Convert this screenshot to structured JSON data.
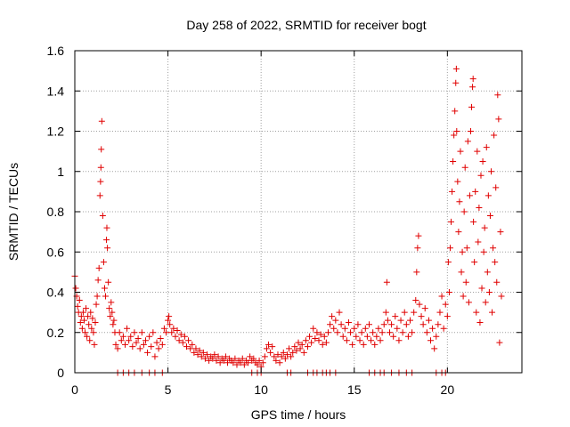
{
  "chart_data": {
    "type": "scatter",
    "title": "Day 258 of 2022, SRMTID for receiver bogt",
    "xlabel": "GPS time / hours",
    "ylabel": "SRMTID / TECUs",
    "xlim": [
      0,
      24
    ],
    "ylim": [
      0,
      1.6
    ],
    "xticks": [
      0,
      5,
      10,
      15,
      20
    ],
    "xtick_labels": [
      "0",
      "5",
      "10",
      "15",
      "20"
    ],
    "yticks": [
      0,
      0.2,
      0.4,
      0.6,
      0.8,
      1.0,
      1.2,
      1.4,
      1.6
    ],
    "ytick_labels": [
      "0",
      "0.2",
      "0.4",
      "0.6",
      "0.8",
      "1",
      "1.2",
      "1.4",
      "1.6"
    ],
    "grid": true,
    "marker": "+",
    "color": "#e00000",
    "series": [
      {
        "name": "SRMTID",
        "points": [
          [
            0.0,
            0.48
          ],
          [
            0.05,
            0.42
          ],
          [
            0.1,
            0.38
          ],
          [
            0.15,
            0.33
          ],
          [
            0.2,
            0.3
          ],
          [
            0.25,
            0.36
          ],
          [
            0.3,
            0.25
          ],
          [
            0.35,
            0.28
          ],
          [
            0.4,
            0.22
          ],
          [
            0.45,
            0.3
          ],
          [
            0.5,
            0.26
          ],
          [
            0.55,
            0.2
          ],
          [
            0.6,
            0.32
          ],
          [
            0.65,
            0.18
          ],
          [
            0.7,
            0.28
          ],
          [
            0.75,
            0.24
          ],
          [
            0.8,
            0.16
          ],
          [
            0.85,
            0.3
          ],
          [
            0.9,
            0.22
          ],
          [
            0.95,
            0.27
          ],
          [
            1.0,
            0.2
          ],
          [
            1.05,
            0.14
          ],
          [
            1.1,
            0.25
          ],
          [
            1.15,
            0.34
          ],
          [
            1.2,
            0.38
          ],
          [
            1.25,
            0.46
          ],
          [
            1.3,
            0.52
          ],
          [
            1.35,
            0.88
          ],
          [
            1.38,
            0.95
          ],
          [
            1.4,
            1.02
          ],
          [
            1.42,
            1.11
          ],
          [
            1.45,
            1.25
          ],
          [
            1.5,
            0.78
          ],
          [
            1.55,
            0.55
          ],
          [
            1.6,
            0.42
          ],
          [
            1.65,
            0.38
          ],
          [
            1.7,
            0.66
          ],
          [
            1.72,
            0.72
          ],
          [
            1.75,
            0.62
          ],
          [
            1.8,
            0.45
          ],
          [
            1.85,
            0.32
          ],
          [
            1.9,
            0.28
          ],
          [
            1.95,
            0.35
          ],
          [
            2.0,
            0.3
          ],
          [
            2.05,
            0.24
          ],
          [
            2.1,
            0.26
          ],
          [
            2.15,
            0.2
          ],
          [
            2.2,
            0.14
          ],
          [
            2.3,
            0.12
          ],
          [
            2.4,
            0.2
          ],
          [
            2.5,
            0.16
          ],
          [
            2.6,
            0.18
          ],
          [
            2.7,
            0.14
          ],
          [
            2.8,
            0.22
          ],
          [
            2.9,
            0.16
          ],
          [
            3.0,
            0.18
          ],
          [
            3.1,
            0.13
          ],
          [
            3.2,
            0.2
          ],
          [
            3.3,
            0.15
          ],
          [
            3.4,
            0.17
          ],
          [
            3.5,
            0.12
          ],
          [
            3.6,
            0.2
          ],
          [
            3.7,
            0.14
          ],
          [
            3.8,
            0.16
          ],
          [
            3.9,
            0.1
          ],
          [
            4.0,
            0.18
          ],
          [
            4.1,
            0.13
          ],
          [
            4.2,
            0.2
          ],
          [
            4.3,
            0.08
          ],
          [
            4.4,
            0.15
          ],
          [
            4.5,
            0.12
          ],
          [
            4.6,
            0.17
          ],
          [
            4.7,
            0.14
          ],
          [
            4.8,
            0.22
          ],
          [
            4.9,
            0.2
          ],
          [
            5.0,
            0.26
          ],
          [
            5.05,
            0.28
          ],
          [
            5.1,
            0.24
          ],
          [
            5.2,
            0.2
          ],
          [
            5.3,
            0.22
          ],
          [
            5.4,
            0.18
          ],
          [
            5.5,
            0.21
          ],
          [
            5.6,
            0.16
          ],
          [
            5.7,
            0.19
          ],
          [
            5.8,
            0.15
          ],
          [
            5.9,
            0.18
          ],
          [
            6.0,
            0.13
          ],
          [
            6.1,
            0.16
          ],
          [
            6.2,
            0.12
          ],
          [
            6.3,
            0.14
          ],
          [
            6.4,
            0.1
          ],
          [
            6.5,
            0.12
          ],
          [
            6.6,
            0.09
          ],
          [
            6.7,
            0.11
          ],
          [
            6.8,
            0.08
          ],
          [
            6.9,
            0.1
          ],
          [
            7.0,
            0.07
          ],
          [
            7.1,
            0.09
          ],
          [
            7.2,
            0.06
          ],
          [
            7.3,
            0.08
          ],
          [
            7.4,
            0.07
          ],
          [
            7.5,
            0.09
          ],
          [
            7.6,
            0.06
          ],
          [
            7.7,
            0.08
          ],
          [
            7.8,
            0.05
          ],
          [
            7.9,
            0.07
          ],
          [
            8.0,
            0.06
          ],
          [
            8.1,
            0.08
          ],
          [
            8.2,
            0.05
          ],
          [
            8.3,
            0.07
          ],
          [
            8.4,
            0.06
          ],
          [
            8.5,
            0.05
          ],
          [
            8.6,
            0.07
          ],
          [
            8.7,
            0.04
          ],
          [
            8.8,
            0.06
          ],
          [
            8.9,
            0.05
          ],
          [
            9.0,
            0.07
          ],
          [
            9.1,
            0.04
          ],
          [
            9.2,
            0.06
          ],
          [
            9.3,
            0.05
          ],
          [
            9.4,
            0.08
          ],
          [
            9.5,
            0.06
          ],
          [
            9.6,
            0.07
          ],
          [
            9.7,
            0.05
          ],
          [
            9.8,
            0.04
          ],
          [
            9.9,
            0.06
          ],
          [
            10.0,
            0.03
          ],
          [
            10.1,
            0.05
          ],
          [
            10.2,
            0.08
          ],
          [
            10.3,
            0.12
          ],
          [
            10.4,
            0.14
          ],
          [
            10.5,
            0.1
          ],
          [
            10.6,
            0.13
          ],
          [
            10.7,
            0.08
          ],
          [
            10.8,
            0.06
          ],
          [
            10.9,
            0.09
          ],
          [
            11.0,
            0.05
          ],
          [
            11.1,
            0.08
          ],
          [
            11.2,
            0.1
          ],
          [
            11.3,
            0.07
          ],
          [
            11.4,
            0.09
          ],
          [
            11.5,
            0.12
          ],
          [
            11.6,
            0.08
          ],
          [
            11.7,
            0.1
          ],
          [
            11.8,
            0.13
          ],
          [
            11.9,
            0.11
          ],
          [
            12.0,
            0.15
          ],
          [
            12.1,
            0.12
          ],
          [
            12.2,
            0.14
          ],
          [
            12.3,
            0.1
          ],
          [
            12.4,
            0.16
          ],
          [
            12.5,
            0.13
          ],
          [
            12.6,
            0.18
          ],
          [
            12.7,
            0.15
          ],
          [
            12.8,
            0.22
          ],
          [
            12.9,
            0.17
          ],
          [
            13.0,
            0.2
          ],
          [
            13.1,
            0.16
          ],
          [
            13.2,
            0.19
          ],
          [
            13.3,
            0.14
          ],
          [
            13.4,
            0.18
          ],
          [
            13.5,
            0.15
          ],
          [
            13.6,
            0.2
          ],
          [
            13.7,
            0.24
          ],
          [
            13.8,
            0.28
          ],
          [
            13.9,
            0.22
          ],
          [
            14.0,
            0.26
          ],
          [
            14.1,
            0.2
          ],
          [
            14.2,
            0.3
          ],
          [
            14.3,
            0.24
          ],
          [
            14.4,
            0.18
          ],
          [
            14.5,
            0.22
          ],
          [
            14.6,
            0.16
          ],
          [
            14.7,
            0.25
          ],
          [
            14.8,
            0.2
          ],
          [
            14.9,
            0.14
          ],
          [
            15.0,
            0.22
          ],
          [
            15.1,
            0.18
          ],
          [
            15.2,
            0.24
          ],
          [
            15.3,
            0.16
          ],
          [
            15.4,
            0.2
          ],
          [
            15.5,
            0.14
          ],
          [
            15.6,
            0.22
          ],
          [
            15.7,
            0.18
          ],
          [
            15.8,
            0.24
          ],
          [
            15.9,
            0.16
          ],
          [
            16.0,
            0.2
          ],
          [
            16.1,
            0.14
          ],
          [
            16.2,
            0.18
          ],
          [
            16.3,
            0.22
          ],
          [
            16.4,
            0.16
          ],
          [
            16.5,
            0.2
          ],
          [
            16.6,
            0.24
          ],
          [
            16.7,
            0.3
          ],
          [
            16.75,
            0.45
          ],
          [
            16.8,
            0.26
          ],
          [
            16.9,
            0.2
          ],
          [
            17.0,
            0.24
          ],
          [
            17.1,
            0.18
          ],
          [
            17.2,
            0.28
          ],
          [
            17.3,
            0.22
          ],
          [
            17.4,
            0.16
          ],
          [
            17.5,
            0.26
          ],
          [
            17.6,
            0.2
          ],
          [
            17.7,
            0.3
          ],
          [
            17.8,
            0.24
          ],
          [
            17.9,
            0.18
          ],
          [
            18.0,
            0.26
          ],
          [
            18.1,
            0.2
          ],
          [
            18.2,
            0.3
          ],
          [
            18.3,
            0.36
          ],
          [
            18.35,
            0.5
          ],
          [
            18.4,
            0.62
          ],
          [
            18.45,
            0.68
          ],
          [
            18.5,
            0.34
          ],
          [
            18.6,
            0.28
          ],
          [
            18.7,
            0.24
          ],
          [
            18.8,
            0.32
          ],
          [
            18.9,
            0.2
          ],
          [
            19.0,
            0.26
          ],
          [
            19.1,
            0.16
          ],
          [
            19.2,
            0.22
          ],
          [
            19.3,
            0.12
          ],
          [
            19.4,
            0.18
          ],
          [
            19.5,
            0.24
          ],
          [
            19.6,
            0.3
          ],
          [
            19.7,
            0.38
          ],
          [
            19.8,
            0.22
          ],
          [
            19.9,
            0.34
          ],
          [
            20.0,
            0.28
          ],
          [
            20.05,
            0.55
          ],
          [
            20.1,
            0.4
          ],
          [
            20.15,
            0.62
          ],
          [
            20.2,
            0.75
          ],
          [
            20.25,
            0.9
          ],
          [
            20.3,
            1.05
          ],
          [
            20.35,
            1.18
          ],
          [
            20.4,
            1.3
          ],
          [
            20.45,
            1.44
          ],
          [
            20.48,
            1.51
          ],
          [
            20.5,
            1.2
          ],
          [
            20.55,
            0.95
          ],
          [
            20.6,
            0.7
          ],
          [
            20.65,
            0.85
          ],
          [
            20.7,
            1.1
          ],
          [
            20.75,
            0.5
          ],
          [
            20.8,
            0.6
          ],
          [
            20.85,
            0.38
          ],
          [
            20.9,
            0.8
          ],
          [
            20.95,
            1.02
          ],
          [
            21.0,
            0.45
          ],
          [
            21.05,
            0.62
          ],
          [
            21.1,
            1.15
          ],
          [
            21.15,
            0.35
          ],
          [
            21.2,
            0.88
          ],
          [
            21.25,
            1.2
          ],
          [
            21.3,
            1.32
          ],
          [
            21.35,
            1.42
          ],
          [
            21.38,
            1.46
          ],
          [
            21.4,
            0.75
          ],
          [
            21.45,
            0.55
          ],
          [
            21.5,
            0.9
          ],
          [
            21.55,
            0.3
          ],
          [
            21.6,
            1.1
          ],
          [
            21.65,
            0.65
          ],
          [
            21.7,
            0.82
          ],
          [
            21.75,
            0.25
          ],
          [
            21.8,
            0.98
          ],
          [
            21.85,
            0.42
          ],
          [
            21.9,
            1.05
          ],
          [
            21.95,
            0.6
          ],
          [
            22.0,
            0.72
          ],
          [
            22.05,
            0.35
          ],
          [
            22.1,
            1.12
          ],
          [
            22.15,
            0.5
          ],
          [
            22.2,
            0.88
          ],
          [
            22.25,
            0.4
          ],
          [
            22.3,
            0.78
          ],
          [
            22.35,
            1.0
          ],
          [
            22.4,
            0.3
          ],
          [
            22.45,
            0.62
          ],
          [
            22.5,
            1.18
          ],
          [
            22.55,
            0.55
          ],
          [
            22.6,
            0.92
          ],
          [
            22.65,
            0.45
          ],
          [
            22.7,
            1.38
          ],
          [
            22.75,
            1.26
          ],
          [
            22.8,
            0.15
          ],
          [
            22.85,
            0.7
          ],
          [
            22.9,
            0.38
          ],
          [
            2.3,
            0.0
          ],
          [
            2.6,
            0.0
          ],
          [
            2.9,
            0.0
          ],
          [
            3.2,
            0.0
          ],
          [
            3.6,
            0.0
          ],
          [
            4.0,
            0.0
          ],
          [
            4.3,
            0.0
          ],
          [
            4.7,
            0.0
          ],
          [
            9.5,
            0.0
          ],
          [
            9.8,
            0.0
          ],
          [
            10.0,
            0.0
          ],
          [
            11.4,
            0.0
          ],
          [
            11.6,
            0.0
          ],
          [
            12.5,
            0.0
          ],
          [
            12.8,
            0.0
          ],
          [
            13.0,
            0.0
          ],
          [
            13.3,
            0.0
          ],
          [
            13.5,
            0.0
          ],
          [
            13.7,
            0.0
          ],
          [
            14.0,
            0.0
          ],
          [
            15.8,
            0.0
          ],
          [
            16.1,
            0.0
          ],
          [
            16.4,
            0.0
          ],
          [
            16.6,
            0.0
          ],
          [
            17.0,
            0.0
          ],
          [
            17.4,
            0.0
          ],
          [
            17.8,
            0.0
          ],
          [
            18.1,
            0.0
          ],
          [
            19.4,
            0.0
          ],
          [
            19.7,
            0.0
          ],
          [
            19.9,
            0.0
          ]
        ]
      }
    ]
  }
}
